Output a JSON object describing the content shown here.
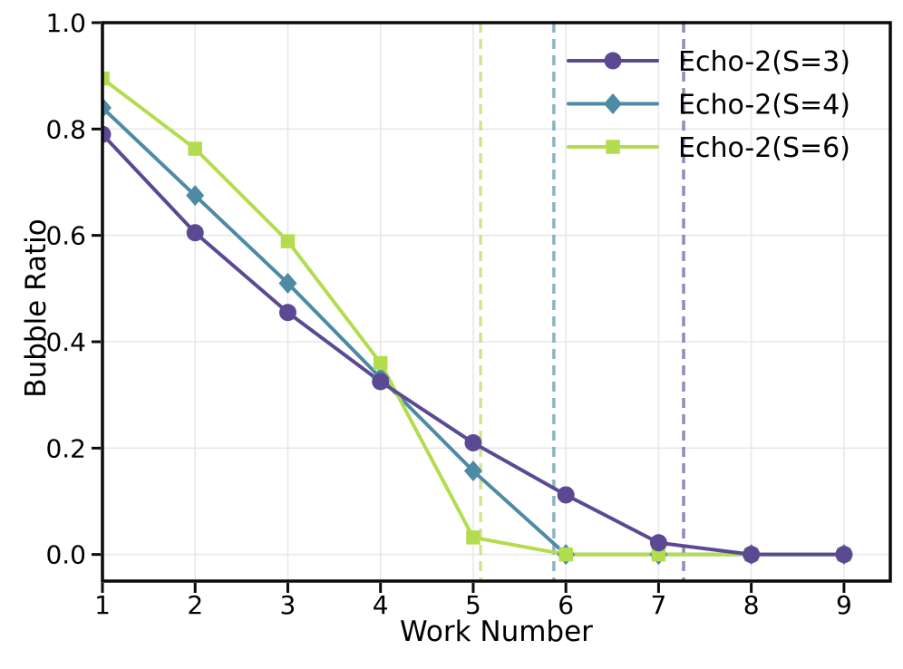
{
  "chart_data": {
    "type": "line",
    "xlabel": "Work Number",
    "ylabel": "Bubble Ratio",
    "x": [
      1,
      2,
      3,
      4,
      5,
      6,
      7,
      8,
      9
    ],
    "xtick_labels": [
      "1",
      "2",
      "3",
      "4",
      "5",
      "6",
      "7",
      "8",
      "9"
    ],
    "yticks": [
      0.0,
      0.2,
      0.4,
      0.6,
      0.8,
      1.0
    ],
    "ytick_labels": [
      "0.0",
      "0.2",
      "0.4",
      "0.6",
      "0.8",
      "1.0"
    ],
    "xlim": [
      1,
      9.5
    ],
    "ylim": [
      -0.05,
      1.0
    ],
    "grid": true,
    "legend": {
      "position": "upper right",
      "frame": false
    },
    "series": [
      {
        "name": "Echo-2(S=3)",
        "color": "#5b4994",
        "marker": "circle",
        "values": [
          0.79,
          0.605,
          0.455,
          0.325,
          0.21,
          0.112,
          0.022,
          0.0,
          0.0
        ],
        "vline_x": 7.27
      },
      {
        "name": "Echo-2(S=4)",
        "color": "#4d8aa6",
        "marker": "diamond",
        "values": [
          0.84,
          0.675,
          0.51,
          0.332,
          0.157,
          0.0,
          0.0,
          0.0,
          0.0
        ],
        "vline_x": 5.87
      },
      {
        "name": "Echo-2(S=6)",
        "color": "#b4dc4f",
        "marker": "square",
        "values": [
          0.895,
          0.763,
          0.589,
          0.36,
          0.032,
          0.0,
          0.0,
          0.0,
          0.0
        ],
        "vline_x": 5.08
      }
    ],
    "colors": {
      "background": "#ffffff",
      "grid": "#e8e8e8",
      "spine": "#0a0a0a",
      "text": "#000000"
    }
  }
}
